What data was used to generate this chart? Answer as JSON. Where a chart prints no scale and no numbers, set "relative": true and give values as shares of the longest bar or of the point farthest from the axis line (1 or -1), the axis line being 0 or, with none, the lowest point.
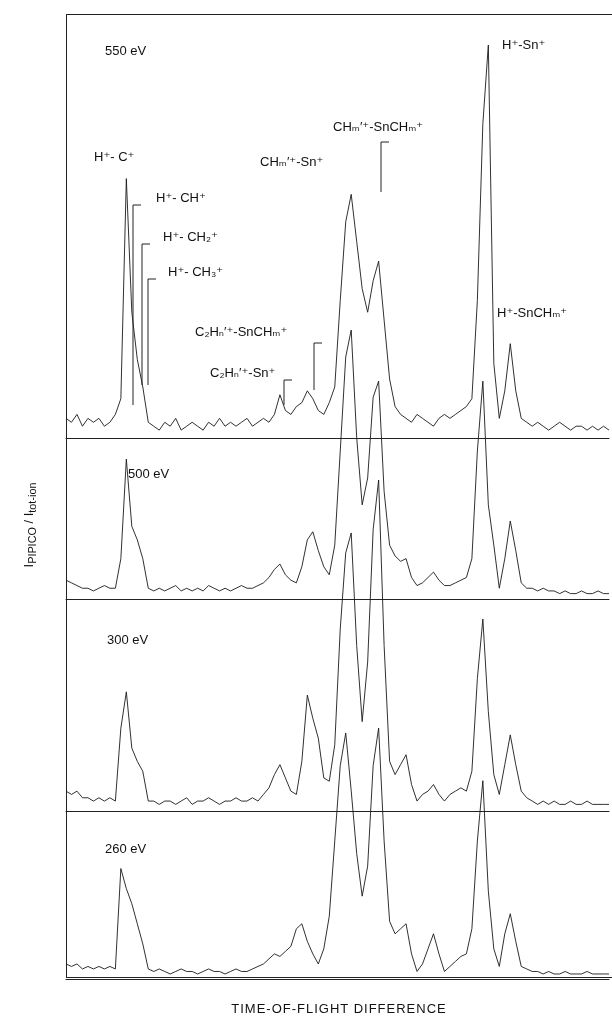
{
  "chart_data": [
    {
      "type": "line",
      "title": "550 eV",
      "ylabel": "I$_{PIPICO}$ / I$_{tot-ion}$",
      "relative": true,
      "color": "#1a1a1a",
      "categories": [
        null,
        null,
        null,
        null,
        null,
        null,
        null,
        null,
        null,
        null,
        null,
        null,
        null,
        null,
        null,
        null,
        null,
        null,
        null,
        null,
        null,
        null,
        null,
        null,
        null,
        null,
        null,
        null,
        null,
        null,
        null,
        null,
        null,
        null,
        null,
        null,
        null,
        null,
        null,
        null,
        null,
        null,
        null,
        null,
        null,
        null,
        null,
        null,
        null,
        null,
        null,
        null,
        null,
        null,
        null,
        null,
        null,
        null,
        null,
        null,
        null,
        null,
        null,
        null,
        null,
        null,
        null,
        null,
        null,
        null,
        null,
        null,
        null,
        null,
        null,
        null,
        null,
        null,
        null,
        null,
        null,
        null,
        null,
        null,
        null,
        null,
        null,
        null,
        null,
        null,
        null,
        null,
        null,
        null,
        null,
        null,
        null,
        null,
        null,
        null
      ],
      "values": [
        0.05,
        0.04,
        0.06,
        0.03,
        0.05,
        0.04,
        0.05,
        0.03,
        0.04,
        0.06,
        0.1,
        0.66,
        0.32,
        0.2,
        0.13,
        0.04,
        0.03,
        0.02,
        0.04,
        0.03,
        0.05,
        0.02,
        0.03,
        0.04,
        0.03,
        0.02,
        0.04,
        0.03,
        0.05,
        0.03,
        0.04,
        0.03,
        0.04,
        0.05,
        0.03,
        0.04,
        0.05,
        0.04,
        0.06,
        0.11,
        0.07,
        0.06,
        0.08,
        0.09,
        0.12,
        0.1,
        0.07,
        0.06,
        0.09,
        0.13,
        0.35,
        0.55,
        0.62,
        0.5,
        0.38,
        0.32,
        0.4,
        0.45,
        0.3,
        0.15,
        0.08,
        0.06,
        0.05,
        0.04,
        0.06,
        0.05,
        0.04,
        0.03,
        0.05,
        0.06,
        0.05,
        0.06,
        0.07,
        0.08,
        0.1,
        0.35,
        0.8,
        1.0,
        0.19,
        0.05,
        0.12,
        0.24,
        0.12,
        0.05,
        0.04,
        0.03,
        0.04,
        0.03,
        0.02,
        0.03,
        0.04,
        0.03,
        0.02,
        0.03,
        0.03,
        0.02,
        0.03,
        0.02,
        0.03,
        0.02
      ],
      "annotations": [
        "H⁺- C⁺",
        "H⁺- CH⁺",
        "H⁺- CH₂⁺",
        "H⁺- CH₃⁺",
        "CHₘ′⁺-Sn⁺",
        "CHₘ′⁺-SnCHₘ⁺",
        "C₂Hₙ′⁺-SnCHₘ⁺",
        "C₂Hₙ′⁺-Sn⁺",
        "H⁺-Sn⁺",
        "H⁺-SnCHₘ⁺"
      ]
    },
    {
      "type": "line",
      "title": "500 eV",
      "relative": true,
      "color": "#1a1a1a",
      "categories": [
        null,
        null,
        null,
        null,
        null,
        null,
        null,
        null,
        null,
        null,
        null,
        null,
        null,
        null,
        null,
        null,
        null,
        null,
        null,
        null,
        null,
        null,
        null,
        null,
        null,
        null,
        null,
        null,
        null,
        null,
        null,
        null,
        null,
        null,
        null,
        null,
        null,
        null,
        null,
        null,
        null,
        null,
        null,
        null,
        null,
        null,
        null,
        null,
        null,
        null,
        null,
        null,
        null,
        null,
        null,
        null,
        null,
        null,
        null,
        null,
        null,
        null,
        null,
        null,
        null,
        null,
        null,
        null,
        null,
        null,
        null,
        null,
        null,
        null,
        null,
        null,
        null,
        null,
        null,
        null,
        null,
        null,
        null,
        null,
        null,
        null,
        null,
        null,
        null,
        null,
        null,
        null,
        null,
        null,
        null,
        null,
        null,
        null,
        null,
        null
      ],
      "values": [
        0.07,
        0.06,
        0.05,
        0.04,
        0.04,
        0.03,
        0.04,
        0.05,
        0.04,
        0.04,
        0.15,
        0.52,
        0.27,
        0.22,
        0.15,
        0.04,
        0.03,
        0.04,
        0.03,
        0.04,
        0.05,
        0.03,
        0.04,
        0.03,
        0.04,
        0.03,
        0.05,
        0.04,
        0.03,
        0.04,
        0.03,
        0.04,
        0.05,
        0.04,
        0.04,
        0.05,
        0.06,
        0.08,
        0.11,
        0.13,
        0.09,
        0.07,
        0.06,
        0.12,
        0.22,
        0.25,
        0.18,
        0.12,
        0.09,
        0.2,
        0.55,
        0.9,
        1.0,
        0.6,
        0.35,
        0.45,
        0.75,
        0.81,
        0.4,
        0.2,
        0.16,
        0.14,
        0.15,
        0.08,
        0.05,
        0.06,
        0.08,
        0.1,
        0.07,
        0.05,
        0.05,
        0.06,
        0.07,
        0.08,
        0.15,
        0.55,
        0.81,
        0.35,
        0.2,
        0.04,
        0.15,
        0.29,
        0.18,
        0.06,
        0.04,
        0.04,
        0.03,
        0.04,
        0.03,
        0.03,
        0.02,
        0.03,
        0.02,
        0.02,
        0.03,
        0.02,
        0.02,
        0.03,
        0.02,
        0.02
      ]
    },
    {
      "type": "line",
      "title": "300 eV",
      "relative": true,
      "color": "#1a1a1a",
      "categories": [
        null,
        null,
        null,
        null,
        null,
        null,
        null,
        null,
        null,
        null,
        null,
        null,
        null,
        null,
        null,
        null,
        null,
        null,
        null,
        null,
        null,
        null,
        null,
        null,
        null,
        null,
        null,
        null,
        null,
        null,
        null,
        null,
        null,
        null,
        null,
        null,
        null,
        null,
        null,
        null,
        null,
        null,
        null,
        null,
        null,
        null,
        null,
        null,
        null,
        null,
        null,
        null,
        null,
        null,
        null,
        null,
        null,
        null,
        null,
        null,
        null,
        null,
        null,
        null,
        null,
        null,
        null,
        null,
        null,
        null,
        null,
        null,
        null,
        null,
        null,
        null,
        null,
        null,
        null,
        null,
        null,
        null,
        null,
        null,
        null,
        null,
        null,
        null,
        null,
        null,
        null,
        null,
        null,
        null,
        null,
        null,
        null,
        null,
        null,
        null
      ],
      "values": [
        0.06,
        0.05,
        0.06,
        0.04,
        0.04,
        0.03,
        0.04,
        0.03,
        0.04,
        0.03,
        0.25,
        0.36,
        0.19,
        0.15,
        0.12,
        0.03,
        0.03,
        0.02,
        0.03,
        0.03,
        0.02,
        0.03,
        0.04,
        0.02,
        0.03,
        0.03,
        0.04,
        0.03,
        0.02,
        0.03,
        0.03,
        0.04,
        0.03,
        0.03,
        0.04,
        0.03,
        0.05,
        0.07,
        0.11,
        0.14,
        0.1,
        0.06,
        0.05,
        0.15,
        0.35,
        0.28,
        0.22,
        0.1,
        0.09,
        0.2,
        0.55,
        0.78,
        0.84,
        0.5,
        0.27,
        0.45,
        0.85,
        1.0,
        0.5,
        0.15,
        0.11,
        0.14,
        0.17,
        0.08,
        0.03,
        0.05,
        0.06,
        0.08,
        0.05,
        0.03,
        0.05,
        0.06,
        0.07,
        0.06,
        0.12,
        0.4,
        0.58,
        0.3,
        0.11,
        0.05,
        0.14,
        0.23,
        0.14,
        0.06,
        0.04,
        0.03,
        0.02,
        0.03,
        0.02,
        0.03,
        0.02,
        0.02,
        0.03,
        0.02,
        0.02,
        0.03,
        0.02,
        0.02,
        0.02,
        0.02
      ]
    },
    {
      "type": "line",
      "title": "260 eV",
      "xlabel": "TIME-OF-FLIGHT DIFFERENCE",
      "relative": true,
      "color": "#1a1a1a",
      "categories": [
        null,
        null,
        null,
        null,
        null,
        null,
        null,
        null,
        null,
        null,
        null,
        null,
        null,
        null,
        null,
        null,
        null,
        null,
        null,
        null,
        null,
        null,
        null,
        null,
        null,
        null,
        null,
        null,
        null,
        null,
        null,
        null,
        null,
        null,
        null,
        null,
        null,
        null,
        null,
        null,
        null,
        null,
        null,
        null,
        null,
        null,
        null,
        null,
        null,
        null,
        null,
        null,
        null,
        null,
        null,
        null,
        null,
        null,
        null,
        null,
        null,
        null,
        null,
        null,
        null,
        null,
        null,
        null,
        null,
        null,
        null,
        null,
        null,
        null,
        null,
        null,
        null,
        null,
        null,
        null,
        null,
        null,
        null,
        null,
        null,
        null,
        null,
        null,
        null,
        null,
        null,
        null,
        null,
        null,
        null,
        null,
        null,
        null,
        null,
        null
      ],
      "values": [
        0.06,
        0.05,
        0.06,
        0.04,
        0.05,
        0.04,
        0.05,
        0.04,
        0.05,
        0.04,
        0.44,
        0.36,
        0.3,
        0.22,
        0.14,
        0.04,
        0.03,
        0.04,
        0.03,
        0.02,
        0.03,
        0.04,
        0.03,
        0.03,
        0.02,
        0.03,
        0.04,
        0.03,
        0.03,
        0.02,
        0.03,
        0.04,
        0.03,
        0.03,
        0.04,
        0.05,
        0.06,
        0.08,
        0.1,
        0.09,
        0.11,
        0.13,
        0.2,
        0.22,
        0.15,
        0.1,
        0.06,
        0.12,
        0.25,
        0.55,
        0.85,
        0.98,
        0.75,
        0.5,
        0.33,
        0.45,
        0.85,
        1.0,
        0.55,
        0.23,
        0.18,
        0.2,
        0.22,
        0.1,
        0.03,
        0.06,
        0.12,
        0.18,
        0.1,
        0.03,
        0.05,
        0.07,
        0.09,
        0.1,
        0.2,
        0.55,
        0.79,
        0.35,
        0.12,
        0.05,
        0.18,
        0.26,
        0.15,
        0.05,
        0.04,
        0.03,
        0.03,
        0.02,
        0.03,
        0.02,
        0.02,
        0.03,
        0.02,
        0.02,
        0.02,
        0.03,
        0.02,
        0.02,
        0.02,
        0.02
      ]
    }
  ]
}
